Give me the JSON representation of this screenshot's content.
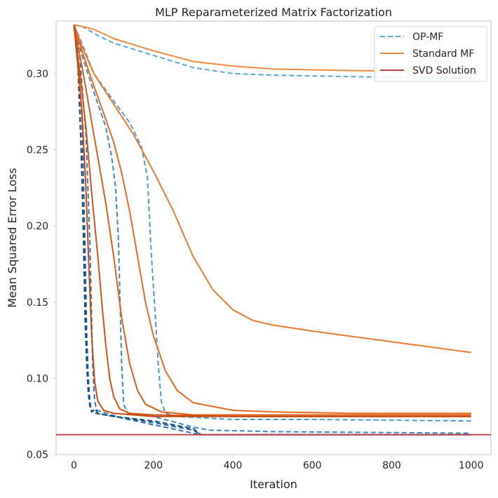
{
  "chart_data": {
    "type": "line",
    "title": "MLP Reparameterized Matrix Factorization",
    "xlabel": "Iteration",
    "ylabel": "Mean Squared Error Loss",
    "xlim": [
      -45,
      1050
    ],
    "ylim": [
      0.05,
      0.3345
    ],
    "xticks": [
      0,
      200,
      400,
      600,
      800,
      1000
    ],
    "xtick_labels": [
      "0",
      "200",
      "400",
      "600",
      "800",
      "1000"
    ],
    "yticks": [
      0.05,
      0.1,
      0.15,
      0.2,
      0.25,
      0.3
    ],
    "ytick_labels": [
      "0.05",
      "0.10",
      "0.15",
      "0.20",
      "0.25",
      "0.30"
    ],
    "grid": false,
    "legend": {
      "position": "top-right",
      "entries": [
        {
          "label": "OP-MF",
          "style": "dashed",
          "color": "#5aa9d4"
        },
        {
          "label": "Standard MF",
          "style": "solid",
          "color": "#f08a3e"
        },
        {
          "label": "SVD Solution",
          "style": "solid",
          "color": "#b04a4a"
        }
      ]
    },
    "svd_solution": {
      "name": "SVD Solution",
      "y": 0.063,
      "color": "#c9484f"
    },
    "series": [
      {
        "name": "OP-MF run 1",
        "group": "OP-MF",
        "color": "#5aa9d4",
        "dashed": true,
        "points": [
          [
            0,
            0.332
          ],
          [
            20,
            0.331
          ],
          [
            60,
            0.325
          ],
          [
            100,
            0.32
          ],
          [
            200,
            0.312
          ],
          [
            300,
            0.304
          ],
          [
            400,
            0.3
          ],
          [
            500,
            0.299
          ],
          [
            700,
            0.298
          ],
          [
            1000,
            0.297
          ]
        ]
      },
      {
        "name": "OP-MF run 2",
        "group": "OP-MF",
        "color": "#4c9bcc",
        "dashed": true,
        "points": [
          [
            0,
            0.332
          ],
          [
            20,
            0.32
          ],
          [
            50,
            0.3
          ],
          [
            100,
            0.282
          ],
          [
            140,
            0.268
          ],
          [
            170,
            0.252
          ],
          [
            185,
            0.232
          ],
          [
            195,
            0.18
          ],
          [
            205,
            0.14
          ],
          [
            212,
            0.11
          ],
          [
            220,
            0.085
          ],
          [
            230,
            0.077
          ],
          [
            260,
            0.075
          ],
          [
            400,
            0.073
          ],
          [
            600,
            0.073
          ],
          [
            1000,
            0.072
          ]
        ]
      },
      {
        "name": "OP-MF run 3",
        "group": "OP-MF",
        "color": "#3e8ac0",
        "dashed": true,
        "points": [
          [
            0,
            0.332
          ],
          [
            20,
            0.312
          ],
          [
            50,
            0.288
          ],
          [
            80,
            0.265
          ],
          [
            95,
            0.245
          ],
          [
            105,
            0.225
          ],
          [
            112,
            0.19
          ],
          [
            116,
            0.15
          ],
          [
            120,
            0.11
          ],
          [
            125,
            0.083
          ],
          [
            135,
            0.077
          ],
          [
            200,
            0.075
          ],
          [
            300,
            0.068
          ],
          [
            340,
            0.066
          ],
          [
            500,
            0.065
          ],
          [
            1000,
            0.064
          ]
        ]
      },
      {
        "name": "OP-MF run 4",
        "group": "OP-MF",
        "color": "#2f77b0",
        "dashed": true,
        "points": [
          [
            0,
            0.332
          ],
          [
            15,
            0.31
          ],
          [
            30,
            0.26
          ],
          [
            40,
            0.19
          ],
          [
            47,
            0.11
          ],
          [
            52,
            0.085
          ],
          [
            58,
            0.079
          ],
          [
            70,
            0.078
          ],
          [
            120,
            0.074
          ],
          [
            300,
            0.064
          ],
          [
            320,
            0.063
          ],
          [
            1000,
            0.063
          ]
        ]
      },
      {
        "name": "OP-MF run 5",
        "group": "OP-MF",
        "color": "#1f5f9a",
        "dashed": true,
        "points": [
          [
            0,
            0.332
          ],
          [
            10,
            0.31
          ],
          [
            20,
            0.27
          ],
          [
            25,
            0.22
          ],
          [
            29,
            0.17
          ],
          [
            32,
            0.13
          ],
          [
            36,
            0.1
          ],
          [
            40,
            0.085
          ],
          [
            44,
            0.078
          ],
          [
            50,
            0.079
          ],
          [
            55,
            0.077
          ],
          [
            100,
            0.075
          ],
          [
            200,
            0.071
          ],
          [
            300,
            0.066
          ],
          [
            320,
            0.063
          ],
          [
            1000,
            0.063
          ]
        ]
      },
      {
        "name": "OP-MF run 6",
        "group": "OP-MF",
        "color": "#104a85",
        "dashed": true,
        "points": [
          [
            0,
            0.332
          ],
          [
            10,
            0.305
          ],
          [
            18,
            0.25
          ],
          [
            24,
            0.19
          ],
          [
            28,
            0.14
          ],
          [
            32,
            0.11
          ],
          [
            36,
            0.09
          ],
          [
            40,
            0.082
          ],
          [
            45,
            0.078
          ],
          [
            52,
            0.08
          ],
          [
            60,
            0.077
          ],
          [
            100,
            0.075
          ],
          [
            200,
            0.072
          ],
          [
            300,
            0.067
          ],
          [
            320,
            0.063
          ],
          [
            1000,
            0.063
          ]
        ]
      },
      {
        "name": "Standard MF run 1",
        "group": "Standard MF",
        "color": "#f08a3e",
        "dashed": false,
        "points": [
          [
            0,
            0.332
          ],
          [
            20,
            0.331
          ],
          [
            50,
            0.329
          ],
          [
            100,
            0.323
          ],
          [
            200,
            0.315
          ],
          [
            300,
            0.308
          ],
          [
            400,
            0.305
          ],
          [
            500,
            0.303
          ],
          [
            700,
            0.302
          ],
          [
            1000,
            0.301
          ]
        ]
      },
      {
        "name": "Standard MF run 2",
        "group": "Standard MF",
        "color": "#ec7a2e",
        "dashed": false,
        "points": [
          [
            0,
            0.332
          ],
          [
            20,
            0.318
          ],
          [
            50,
            0.3
          ],
          [
            100,
            0.28
          ],
          [
            150,
            0.26
          ],
          [
            200,
            0.236
          ],
          [
            250,
            0.21
          ],
          [
            300,
            0.18
          ],
          [
            350,
            0.158
          ],
          [
            400,
            0.145
          ],
          [
            450,
            0.138
          ],
          [
            500,
            0.135
          ],
          [
            600,
            0.131
          ],
          [
            800,
            0.124
          ],
          [
            1000,
            0.117
          ]
        ]
      },
      {
        "name": "Standard MF run 3",
        "group": "Standard MF",
        "color": "#e56a22",
        "dashed": false,
        "points": [
          [
            0,
            0.332
          ],
          [
            20,
            0.315
          ],
          [
            50,
            0.292
          ],
          [
            80,
            0.27
          ],
          [
            100,
            0.255
          ],
          [
            120,
            0.235
          ],
          [
            140,
            0.21
          ],
          [
            160,
            0.18
          ],
          [
            180,
            0.15
          ],
          [
            200,
            0.128
          ],
          [
            230,
            0.105
          ],
          [
            260,
            0.092
          ],
          [
            300,
            0.084
          ],
          [
            400,
            0.079
          ],
          [
            500,
            0.078
          ],
          [
            700,
            0.077
          ],
          [
            1000,
            0.077
          ]
        ]
      },
      {
        "name": "Standard MF run 4",
        "group": "Standard MF",
        "color": "#dd5e18",
        "dashed": false,
        "points": [
          [
            0,
            0.332
          ],
          [
            20,
            0.305
          ],
          [
            40,
            0.275
          ],
          [
            60,
            0.245
          ],
          [
            80,
            0.215
          ],
          [
            100,
            0.18
          ],
          [
            120,
            0.14
          ],
          [
            140,
            0.11
          ],
          [
            160,
            0.092
          ],
          [
            180,
            0.083
          ],
          [
            220,
            0.078
          ],
          [
            300,
            0.076
          ],
          [
            500,
            0.076
          ],
          [
            1000,
            0.076
          ]
        ]
      },
      {
        "name": "Standard MF run 5",
        "group": "Standard MF",
        "color": "#d35414",
        "dashed": false,
        "points": [
          [
            0,
            0.332
          ],
          [
            15,
            0.3
          ],
          [
            30,
            0.265
          ],
          [
            45,
            0.22
          ],
          [
            60,
            0.18
          ],
          [
            70,
            0.15
          ],
          [
            80,
            0.122
          ],
          [
            90,
            0.1
          ],
          [
            100,
            0.088
          ],
          [
            115,
            0.08
          ],
          [
            140,
            0.077
          ],
          [
            200,
            0.076
          ],
          [
            400,
            0.075
          ],
          [
            1000,
            0.075
          ]
        ]
      },
      {
        "name": "Standard MF run 6",
        "group": "Standard MF",
        "color": "#c44a10",
        "dashed": false,
        "points": [
          [
            0,
            0.332
          ],
          [
            10,
            0.305
          ],
          [
            20,
            0.275
          ],
          [
            30,
            0.225
          ],
          [
            38,
            0.17
          ],
          [
            45,
            0.125
          ],
          [
            52,
            0.098
          ],
          [
            60,
            0.085
          ],
          [
            75,
            0.079
          ],
          [
            100,
            0.077
          ],
          [
            200,
            0.075
          ],
          [
            1000,
            0.075
          ]
        ]
      }
    ]
  }
}
